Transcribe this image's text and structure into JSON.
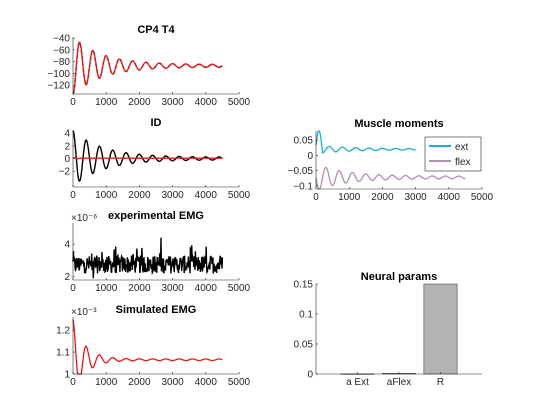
{
  "chart_data": [
    {
      "id": "cp4t4",
      "type": "line",
      "title": "CP4 T4",
      "xlim": [
        0,
        5000
      ],
      "ylim": [
        -135,
        -38
      ],
      "xticks": [
        0,
        1000,
        2000,
        3000,
        4000,
        5000
      ],
      "yticks": [
        -120,
        -100,
        -80,
        -60,
        -40
      ],
      "series": [
        {
          "style": "dashed",
          "color": "#000000",
          "model": "damped",
          "params": {
            "base": -87,
            "amp": -47,
            "tau": 900,
            "period": 400,
            "decay2": 0.04,
            "x_end": 4500
          }
        },
        {
          "style": "solid",
          "color": "#e8191a",
          "model": "damped",
          "params": {
            "base": -87,
            "amp": -48,
            "tau": 850,
            "period": 400,
            "decay2": 0.05,
            "x_end": 4500
          }
        }
      ]
    },
    {
      "id": "id",
      "type": "line",
      "title": "ID",
      "xlim": [
        0,
        5000
      ],
      "ylim": [
        -4.5,
        4.5
      ],
      "xticks": [
        0,
        1000,
        2000,
        3000,
        4000,
        5000
      ],
      "yticks": [
        -2,
        0,
        2,
        4
      ],
      "series": [
        {
          "style": "solid",
          "color": "#000000",
          "model": "damped",
          "params": {
            "base": 0,
            "amp": 4.2,
            "tau": 900,
            "period": 400,
            "decay2": 0.05,
            "x_end": 4500
          }
        },
        {
          "style": "solid",
          "color": "#e8191a",
          "model": "flat",
          "params": {
            "base": 0.05,
            "x_end": 4500
          }
        }
      ]
    },
    {
      "id": "expemg",
      "type": "line",
      "title": "experimental EMG",
      "exponent": "×10⁻⁶",
      "xlim": [
        0,
        5000
      ],
      "ylim": [
        1.8,
        5.3
      ],
      "xticks": [
        0,
        1000,
        2000,
        3000,
        4000,
        5000
      ],
      "yticks": [
        2,
        4
      ],
      "series": [
        {
          "style": "solid",
          "color": "#000000",
          "model": "noise",
          "params": {
            "base": 2.75,
            "spread": 0.55,
            "n": 360,
            "x_end": 4500
          }
        }
      ]
    },
    {
      "id": "simemg",
      "type": "line",
      "title": "Simulated EMG",
      "exponent": "×10⁻³",
      "xlim": [
        0,
        5000
      ],
      "ylim": [
        1.0,
        1.26
      ],
      "xticks": [
        0,
        1000,
        2000,
        3000,
        4000,
        5000
      ],
      "yticks": [
        1,
        1.1,
        1.2
      ],
      "series": [
        {
          "style": "solid",
          "color": "#e8191a",
          "model": "damped",
          "params": {
            "base": 1.065,
            "amp": 0.18,
            "tau": 350,
            "period": 400,
            "decay2": 0.02,
            "x_end": 4500
          }
        }
      ]
    },
    {
      "id": "moments",
      "type": "line",
      "title": "Muscle moments",
      "xlim": [
        0,
        5000
      ],
      "ylim": [
        -0.11,
        0.08
      ],
      "xticks": [
        0,
        1000,
        2000,
        3000,
        4000,
        5000
      ],
      "yticks": [
        -0.1,
        -0.05,
        0,
        0.05
      ],
      "legend": {
        "placement": "top-right",
        "entries": [
          "ext",
          "flex"
        ]
      },
      "series": [
        {
          "name": "ext",
          "style": "solid",
          "color": "#1ab2c8",
          "model": "moment_ext",
          "params": {
            "x_end": 4500
          }
        },
        {
          "name": "flex",
          "style": "solid",
          "color": "#b48cb4",
          "model": "moment_flex",
          "params": {
            "x_end": 4500
          }
        }
      ]
    },
    {
      "id": "neural",
      "type": "bar",
      "title": "Neural params",
      "categories": [
        "a Ext",
        "aFlex",
        "R"
      ],
      "values": [
        0.0003,
        0.001,
        0.15
      ],
      "ylim": [
        0,
        0.15
      ],
      "yticks": [
        0,
        0.05,
        0.1,
        0.15
      ],
      "bar_color": "#b3b3b3"
    }
  ]
}
